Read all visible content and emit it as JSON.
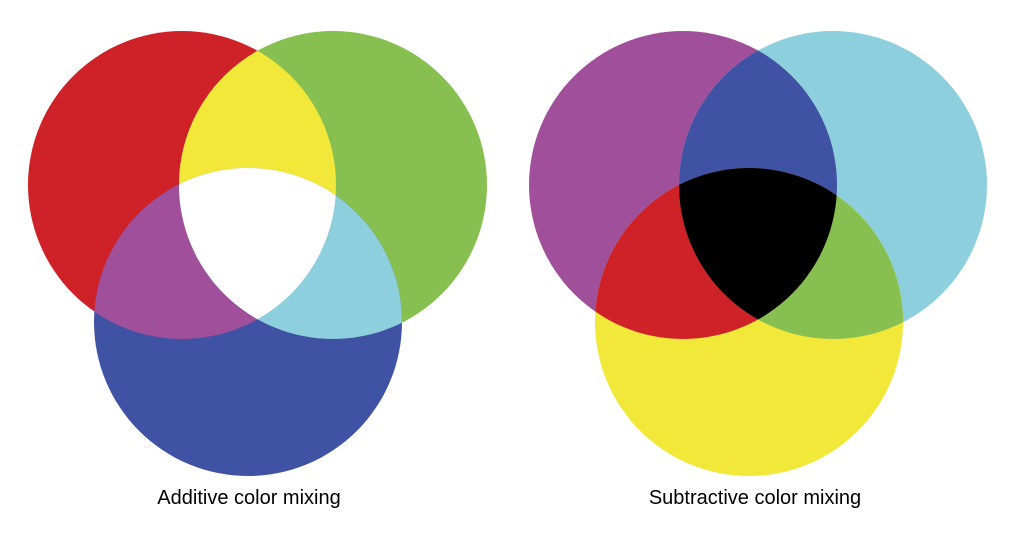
{
  "additive": {
    "caption": "Additive color mixing",
    "colors": {
      "red": "#cf2128",
      "green": "#87bf50",
      "blue": "#4052a3",
      "red_green": "#f2e83a",
      "red_blue": "#a0509b",
      "green_blue": "#8ecfdd",
      "all": "#ffffff"
    }
  },
  "subtractive": {
    "caption": "Subtractive color mixing",
    "colors": {
      "magenta": "#a0509b",
      "cyan": "#8ecfdd",
      "yellow": "#f2e83a",
      "magenta_cyan": "#4052a3",
      "magenta_yellow": "#cf2128",
      "cyan_yellow": "#87bf50",
      "all": "#000000"
    }
  }
}
